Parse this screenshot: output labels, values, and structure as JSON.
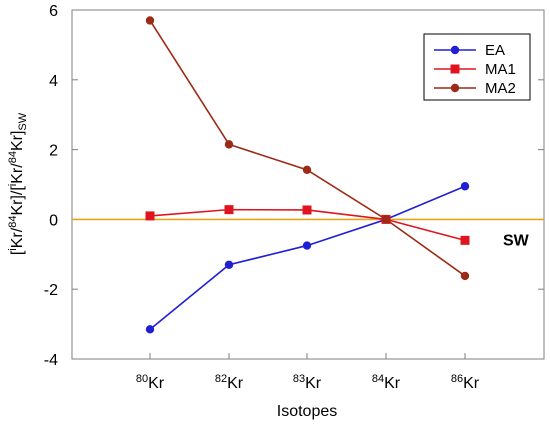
{
  "chart_data": {
    "type": "line",
    "categories": [
      {
        "mass": "80",
        "element": "Kr"
      },
      {
        "mass": "82",
        "element": "Kr"
      },
      {
        "mass": "83",
        "element": "Kr"
      },
      {
        "mass": "84",
        "element": "Kr"
      },
      {
        "mass": "86",
        "element": "Kr"
      }
    ],
    "series": [
      {
        "name": "EA",
        "color": "#1f1fd6",
        "marker": "circle",
        "values": [
          -3.15,
          -1.3,
          -0.75,
          0.0,
          0.95
        ]
      },
      {
        "name": "MA1",
        "color": "#e0141e",
        "marker": "square",
        "values": [
          0.1,
          0.28,
          0.27,
          0.0,
          -0.6
        ]
      },
      {
        "name": "MA2",
        "color": "#9c2a16",
        "marker": "circle",
        "values": [
          5.7,
          2.15,
          1.42,
          0.0,
          -1.62
        ]
      }
    ],
    "reference_line": {
      "label": "SW",
      "value": 0,
      "color": "#e5a41a"
    },
    "xlabel": "Isotopes",
    "ylabel": {
      "parts": [
        "[",
        "i",
        "Kr/",
        "84",
        "Kr]/[",
        "i",
        "Kr/",
        "84",
        "Kr]",
        "SW"
      ]
    },
    "ylim": [
      -4,
      6
    ],
    "yticks": [
      -4,
      -2,
      0,
      2,
      4,
      6
    ],
    "legend_position": "top-right",
    "grid": false
  }
}
